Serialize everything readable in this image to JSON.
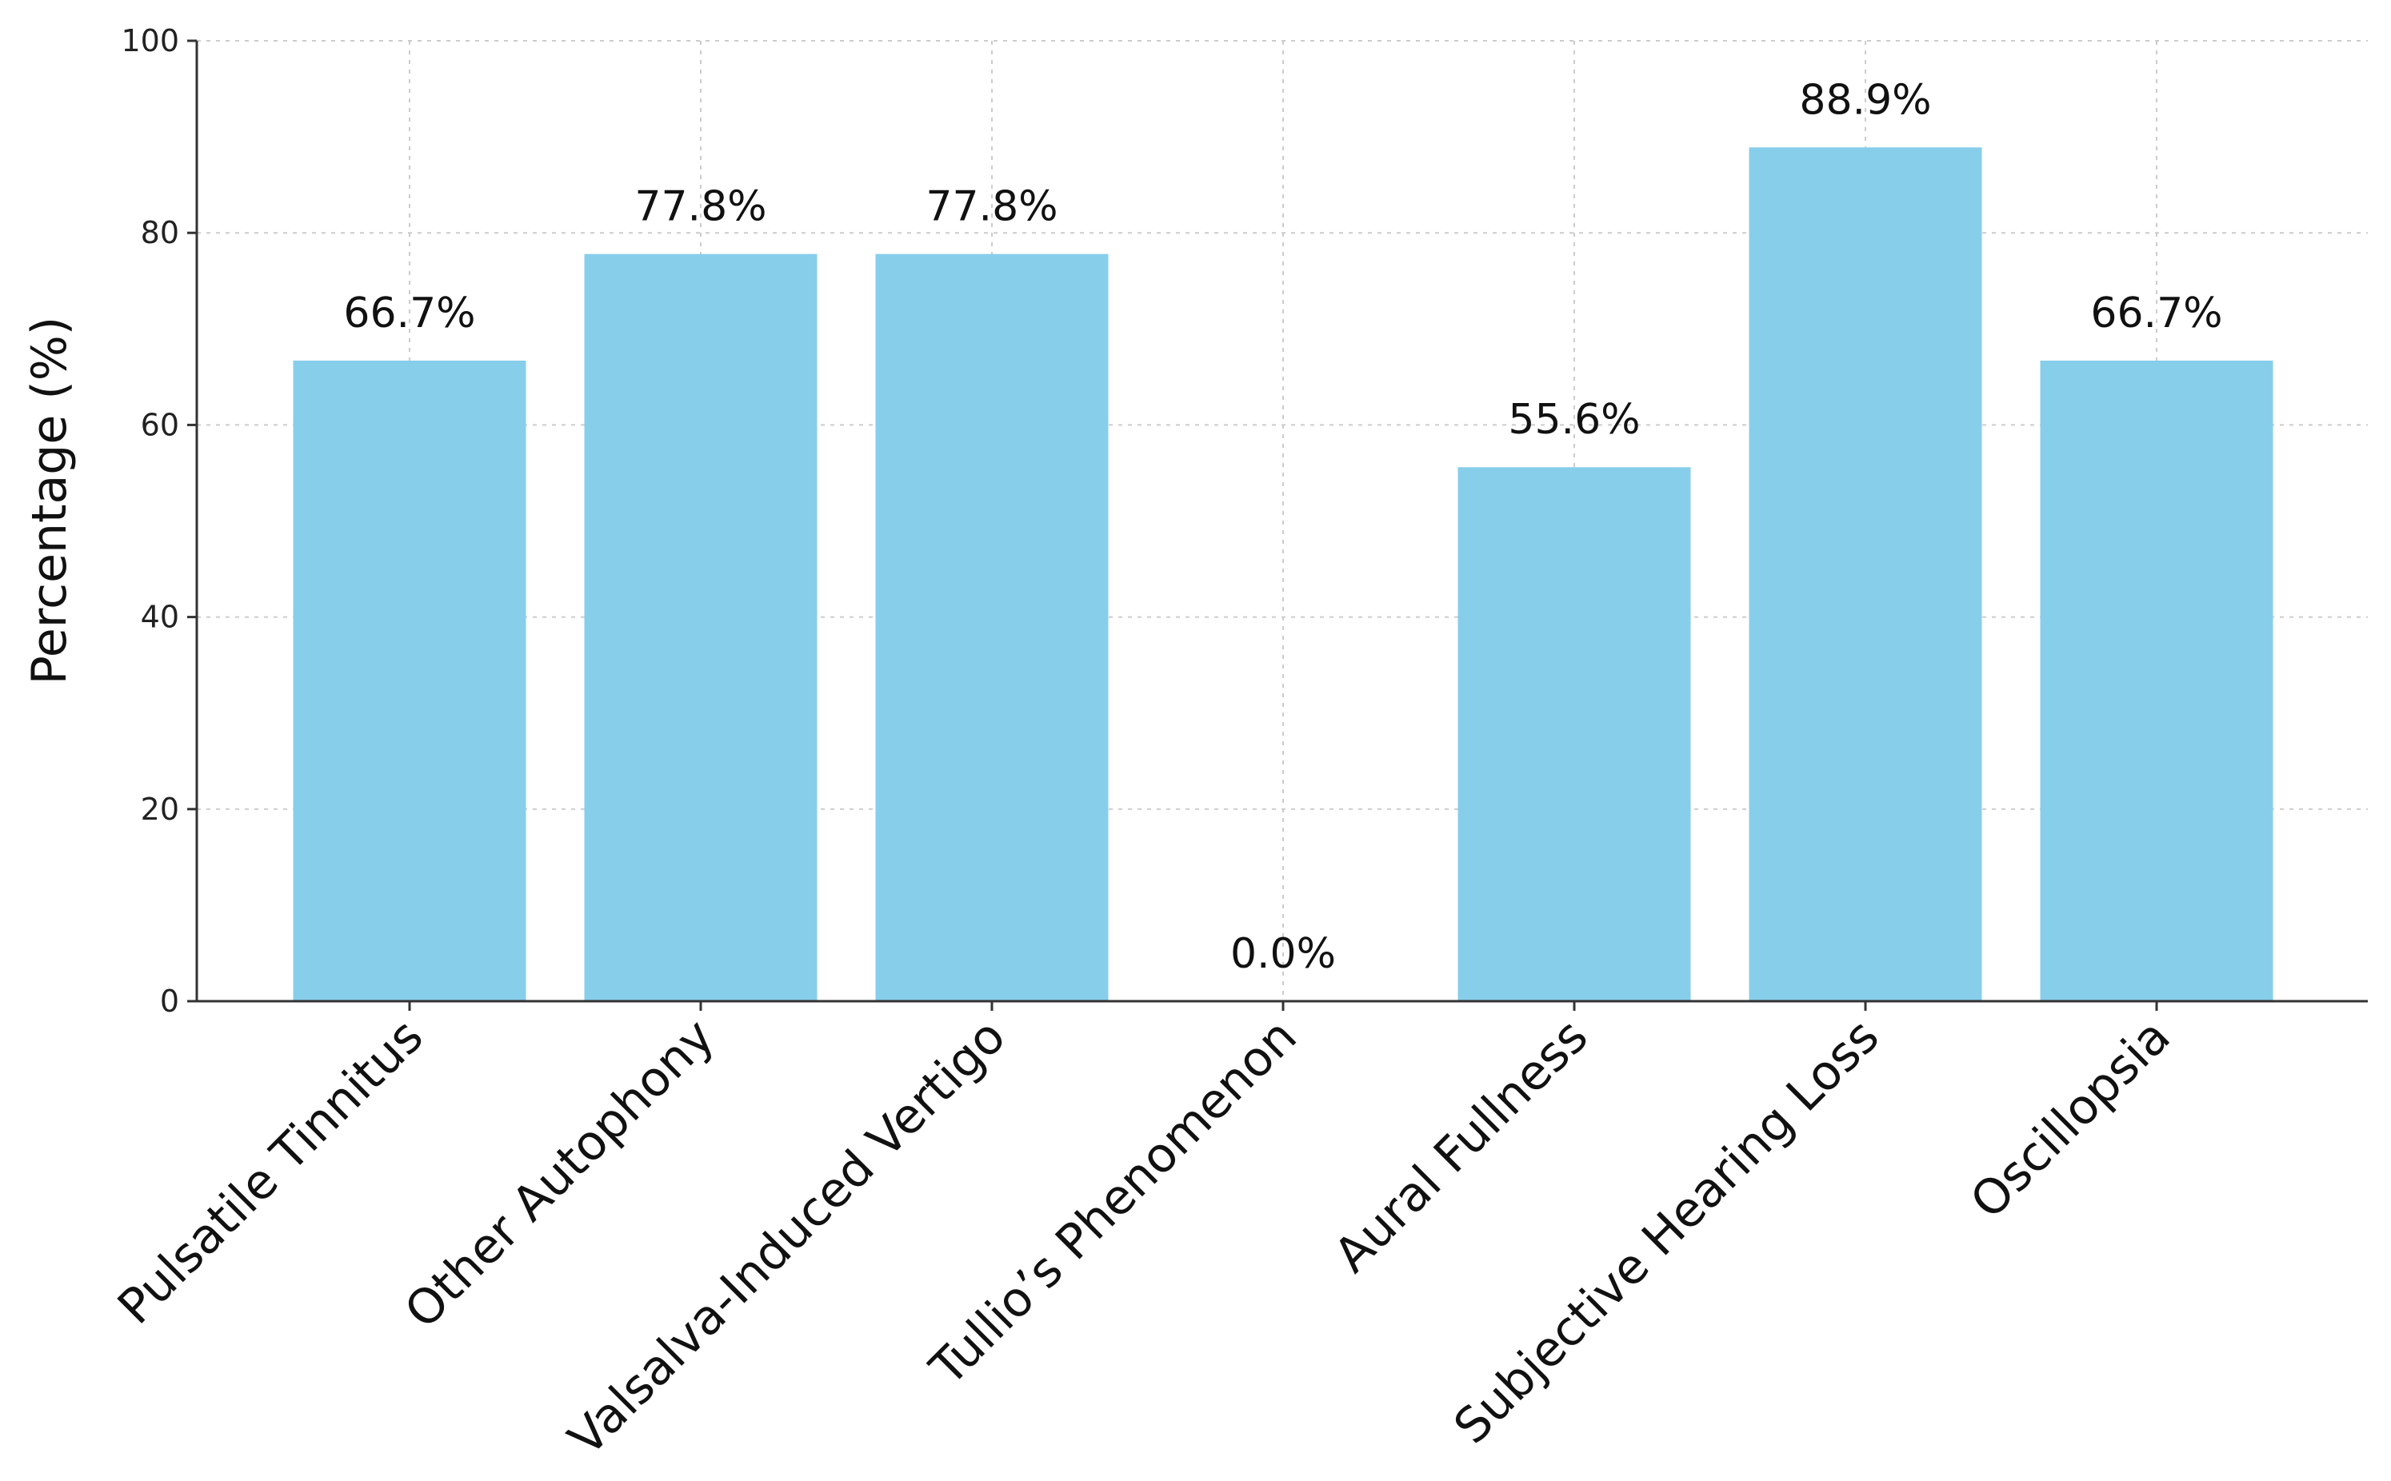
{
  "chart_data": {
    "type": "bar",
    "categories": [
      "Pulsatile Tinnitus",
      "Other Autophony",
      "Valsalva-Induced Vertigo",
      "Tullio’s Phenomenon",
      "Aural Fullness",
      "Subjective Hearing Loss",
      "Oscillopsia"
    ],
    "values": [
      66.7,
      77.8,
      77.8,
      0.0,
      55.6,
      88.9,
      66.7
    ],
    "data_labels": [
      "66.7%",
      "77.8%",
      "77.8%",
      "0.0%",
      "55.6%",
      "88.9%",
      "66.7%"
    ],
    "title": "",
    "xlabel": "",
    "ylabel": "Percentage (%)",
    "ylim": [
      0,
      100
    ],
    "yticks": [
      0,
      20,
      40,
      60,
      80,
      100
    ],
    "grid": true,
    "bar_color": "#87CEEB"
  }
}
